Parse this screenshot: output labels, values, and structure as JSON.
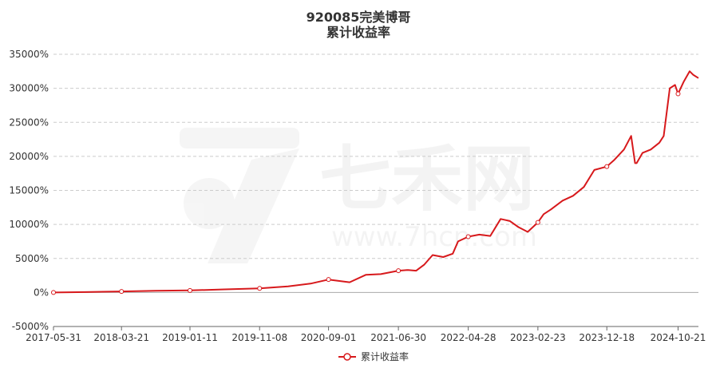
{
  "chart_data": {
    "type": "line",
    "title": "920085完美博哥",
    "subtitle": "累计收益率",
    "xlabel": "",
    "ylabel": "",
    "x_ticks": [
      "2017-05-31",
      "2018-03-21",
      "2019-01-11",
      "2019-11-08",
      "2020-09-01",
      "2021-06-30",
      "2022-04-28",
      "2023-02-23",
      "2023-12-18",
      "2024-10-21"
    ],
    "y_ticks": [
      "-5000%",
      "0%",
      "5000%",
      "10000%",
      "15000%",
      "20000%",
      "25000%",
      "30000%",
      "35000%"
    ],
    "ylim": [
      -5000,
      35000
    ],
    "xlim": [
      "2017-05-31",
      "2025-01-17"
    ],
    "grid": true,
    "legend_position": "bottom-center",
    "series": [
      {
        "name": "累计收益率",
        "color": "#d7191c",
        "marker_dates": [
          "2017-05-31",
          "2018-03-21",
          "2019-01-11",
          "2019-11-08",
          "2020-09-01",
          "2021-06-30",
          "2022-04-28",
          "2023-02-23",
          "2023-12-18",
          "2024-10-21"
        ],
        "x": [
          "2017-05-31",
          "2017-10-15",
          "2018-03-21",
          "2018-08-15",
          "2019-01-11",
          "2019-06-10",
          "2019-11-08",
          "2020-03-10",
          "2020-06-15",
          "2020-09-01",
          "2020-12-01",
          "2021-02-10",
          "2021-04-15",
          "2021-06-30",
          "2021-08-10",
          "2021-09-15",
          "2021-10-20",
          "2021-11-25",
          "2022-01-10",
          "2022-02-20",
          "2022-03-15",
          "2022-04-28",
          "2022-06-15",
          "2022-08-01",
          "2022-09-15",
          "2022-10-25",
          "2022-12-01",
          "2023-01-10",
          "2023-02-23",
          "2023-03-20",
          "2023-04-20",
          "2023-06-10",
          "2023-07-25",
          "2023-09-10",
          "2023-10-25",
          "2023-12-18",
          "2024-01-20",
          "2024-03-01",
          "2024-04-01",
          "2024-04-18",
          "2024-04-25",
          "2024-05-20",
          "2024-06-25",
          "2024-08-01",
          "2024-08-20",
          "2024-09-15",
          "2024-10-08",
          "2024-10-21",
          "2024-11-15",
          "2024-12-10",
          "2024-12-25",
          "2025-01-17"
        ],
        "values": [
          0,
          50,
          150,
          250,
          300,
          450,
          600,
          900,
          1300,
          1900,
          1500,
          2600,
          2700,
          3200,
          3300,
          3200,
          4100,
          5500,
          5200,
          5700,
          7500,
          8200,
          8500,
          8300,
          10800,
          10500,
          9600,
          8900,
          10300,
          11500,
          12200,
          13500,
          14200,
          15500,
          18000,
          18500,
          19500,
          21000,
          23000,
          19000,
          19000,
          20500,
          21000,
          22000,
          23000,
          30000,
          30500,
          29200,
          31000,
          32500,
          32000,
          31500
        ]
      }
    ]
  },
  "watermark": {
    "brand": "七禾网",
    "url": "www.7hcn.com"
  }
}
